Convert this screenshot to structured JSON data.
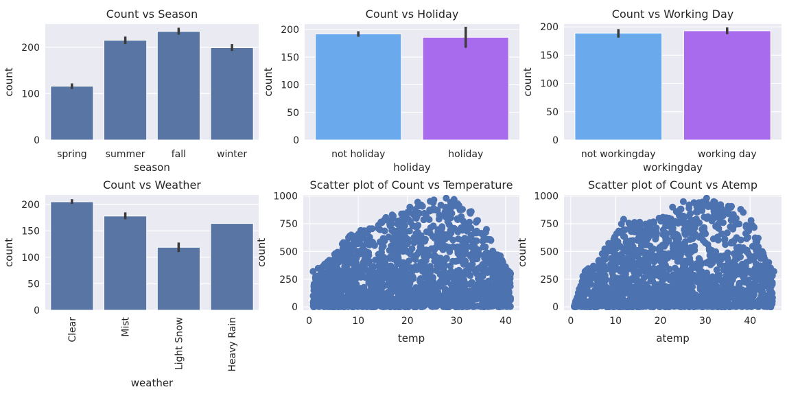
{
  "chart_data": [
    {
      "type": "bar",
      "title": "Count vs Season",
      "xlabel": "season",
      "ylabel": "count",
      "categories": [
        "spring",
        "summer",
        "fall",
        "winter"
      ],
      "values": [
        116,
        215,
        234,
        199
      ],
      "error": [
        [
          110,
          122
        ],
        [
          207,
          223
        ],
        [
          227,
          242
        ],
        [
          192,
          207
        ]
      ],
      "ylim": [
        0,
        250
      ],
      "yticks": [
        0,
        100,
        200
      ],
      "colors": [
        "#5875a4",
        "#5875a4",
        "#5875a4",
        "#5875a4"
      ],
      "rotate_xticks": false
    },
    {
      "type": "bar",
      "title": "Count vs Holiday",
      "xlabel": "holiday",
      "ylabel": "count",
      "categories": [
        "not holiday",
        "holiday"
      ],
      "values": [
        192,
        186
      ],
      "error": [
        [
          187,
          197
        ],
        [
          167,
          205
        ]
      ],
      "ylim": [
        0,
        210
      ],
      "yticks": [
        0,
        50,
        100,
        150,
        200
      ],
      "colors": [
        "#6aaaec",
        "#a96bee"
      ],
      "rotate_xticks": false
    },
    {
      "type": "bar",
      "title": "Count vs Working Day",
      "xlabel": "workingday",
      "ylabel": "count",
      "categories": [
        "not workingday",
        "working day"
      ],
      "values": [
        189,
        193
      ],
      "error": [
        [
          181,
          196
        ],
        [
          187,
          199
        ]
      ],
      "ylim": [
        0,
        205
      ],
      "yticks": [
        0,
        50,
        100,
        150,
        200
      ],
      "colors": [
        "#6aaaec",
        "#a96bee"
      ],
      "rotate_xticks": false
    },
    {
      "type": "bar",
      "title": "Count vs Weather",
      "xlabel": "weather",
      "ylabel": "count",
      "categories": [
        "Clear",
        "Mist",
        "Light Snow",
        "Heavy Rain"
      ],
      "values": [
        205,
        178,
        119,
        164
      ],
      "error": [
        [
          201,
          210
        ],
        [
          172,
          185
        ],
        [
          110,
          128
        ],
        [
          164,
          164
        ]
      ],
      "ylim": [
        0,
        218
      ],
      "yticks": [
        0,
        50,
        100,
        150,
        200
      ],
      "colors": [
        "#5875a4",
        "#5875a4",
        "#5875a4",
        "#5875a4"
      ],
      "rotate_xticks": true
    },
    {
      "type": "scatter",
      "title": "Scatter plot of Count vs Temperature",
      "xlabel": "temp",
      "ylabel": "count",
      "xlim": [
        -1.2,
        42.8
      ],
      "ylim": [
        -30,
        1010
      ],
      "xticks": [
        0,
        10,
        20,
        30,
        40
      ],
      "yticks": [
        0,
        250,
        500,
        750,
        1000
      ],
      "color": "#4c72b0",
      "shape": [
        [
          0.8,
          0,
          320
        ],
        [
          4,
          0,
          420
        ],
        [
          8,
          0,
          650
        ],
        [
          12,
          0,
          720
        ],
        [
          16,
          0,
          820
        ],
        [
          20,
          0,
          880
        ],
        [
          24,
          0,
          960
        ],
        [
          28,
          0,
          980
        ],
        [
          32,
          0,
          900
        ],
        [
          36,
          0,
          700
        ],
        [
          39,
          0,
          450
        ],
        [
          41,
          0,
          330
        ]
      ],
      "points": [
        [
          0.8,
          320
        ],
        [
          1.6,
          180
        ],
        [
          4.1,
          420
        ],
        [
          5,
          425
        ],
        [
          12.3,
          705
        ],
        [
          18.9,
          790
        ],
        [
          22.1,
          945
        ],
        [
          25.4,
          965
        ],
        [
          27.9,
          980
        ],
        [
          29.5,
          970
        ],
        [
          31.2,
          880
        ],
        [
          34.3,
          780
        ],
        [
          36.1,
          700
        ],
        [
          38.9,
          460
        ],
        [
          41.0,
          300
        ],
        [
          10.5,
          690
        ],
        [
          14.8,
          760
        ],
        [
          16.9,
          830
        ],
        [
          20.5,
          900
        ],
        [
          33,
          860
        ],
        [
          37,
          600
        ],
        [
          39.5,
          360
        ],
        [
          8.2,
          560
        ],
        [
          6.6,
          420
        ],
        [
          2.5,
          100
        ],
        [
          3.5,
          160
        ]
      ]
    },
    {
      "type": "scatter",
      "title": "Scatter plot of Count vs Atemp",
      "xlabel": "atemp",
      "ylabel": "count",
      "xlim": [
        -1.5,
        47
      ],
      "ylim": [
        -30,
        1010
      ],
      "xticks": [
        0,
        10,
        20,
        30,
        40
      ],
      "yticks": [
        0,
        250,
        500,
        750,
        1000
      ],
      "color": "#4c72b0",
      "shape": [
        [
          0.8,
          0,
          10
        ],
        [
          3,
          0,
          320
        ],
        [
          6,
          0,
          420
        ],
        [
          9,
          0,
          620
        ],
        [
          12,
          0,
          790
        ],
        [
          16,
          0,
          760
        ],
        [
          20,
          0,
          800
        ],
        [
          24,
          0,
          880
        ],
        [
          28,
          0,
          950
        ],
        [
          31,
          0,
          980
        ],
        [
          34,
          0,
          930
        ],
        [
          38,
          0,
          880
        ],
        [
          41,
          0,
          720
        ],
        [
          43,
          0,
          520
        ],
        [
          45,
          0,
          320
        ]
      ],
      "points": [
        [
          0.8,
          5
        ],
        [
          2,
          5
        ],
        [
          3.2,
          320
        ],
        [
          6.3,
          420
        ],
        [
          7.4,
          430
        ],
        [
          11.8,
          790
        ],
        [
          14.5,
          720
        ],
        [
          19.7,
          800
        ],
        [
          25.1,
          950
        ],
        [
          26.4,
          920
        ],
        [
          30.3,
          980
        ],
        [
          31.9,
          950
        ],
        [
          35.2,
          890
        ],
        [
          37.9,
          880
        ],
        [
          40.2,
          780
        ],
        [
          41.8,
          620
        ],
        [
          43.5,
          400
        ],
        [
          44.6,
          300
        ],
        [
          45.3,
          320
        ],
        [
          13.5,
          680
        ],
        [
          17.2,
          700
        ],
        [
          22.7,
          900
        ],
        [
          28.6,
          940
        ],
        [
          34,
          760
        ],
        [
          39.1,
          720
        ],
        [
          42.7,
          500
        ],
        [
          9.6,
          610
        ],
        [
          5.4,
          350
        ]
      ]
    }
  ]
}
